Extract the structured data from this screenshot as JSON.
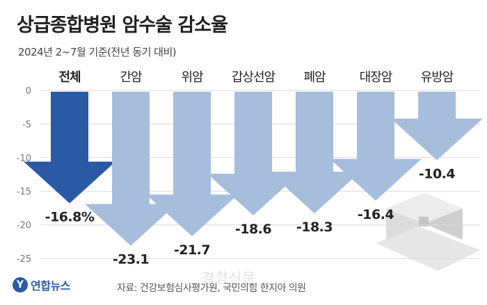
{
  "title": "상급종합병원 암수술 감소율",
  "subtitle": "2024년 2~7월 기준(전년 동기 대비)",
  "source": "자료: 건강보험심사평가원, 국민의힘 한지아 의원",
  "logo": {
    "mark": "Y",
    "text": "연합뉴스"
  },
  "watermark": "경향신문",
  "colors": {
    "highlight": "#2a5aa6",
    "bar": "#a7bddc",
    "grid": "#d9d9d9",
    "text": "#222222"
  },
  "chart_data": {
    "type": "bar",
    "style": "downward-arrows",
    "categories": [
      "전체",
      "간암",
      "위암",
      "갑상선암",
      "폐암",
      "대장암",
      "유방암"
    ],
    "values": [
      -16.8,
      -23.1,
      -21.7,
      -18.6,
      -18.3,
      -16.4,
      -10.4
    ],
    "labels": [
      "-16.8%",
      "-23.1",
      "-21.7",
      "-18.6",
      "-18.3",
      "-16.4",
      "-10.4"
    ],
    "highlight_index": 0,
    "ylim": [
      -25,
      0
    ],
    "yticks": [
      0,
      -5,
      -10,
      -15,
      -20,
      -25
    ],
    "grid": true
  }
}
